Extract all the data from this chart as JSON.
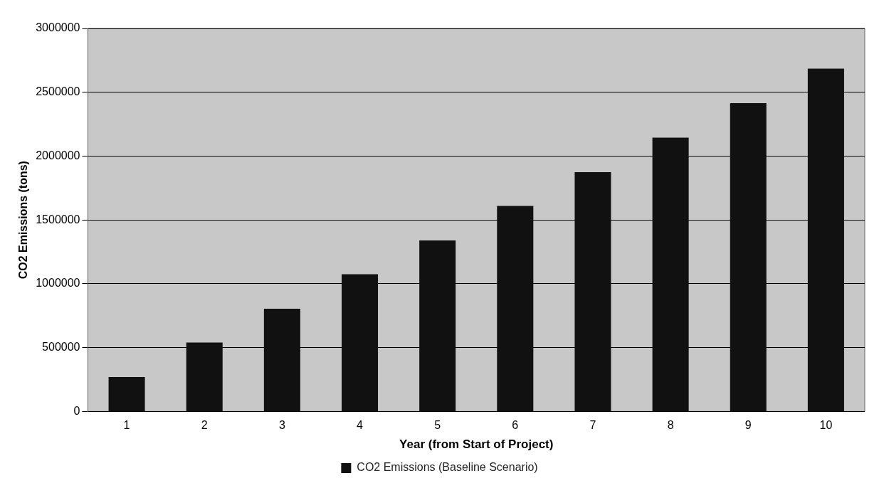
{
  "chart_data": {
    "type": "bar",
    "xlabel": "Year (from Start of Project)",
    "ylabel": "CO2 Emissions (tons)",
    "categories": [
      "1",
      "2",
      "3",
      "4",
      "5",
      "6",
      "7",
      "8",
      "9",
      "10"
    ],
    "series": [
      {
        "name": "CO2 Emissions (Baseline Scenario)",
        "color": "#111111",
        "values": [
          270000,
          540000,
          805000,
          1075000,
          1340000,
          1610000,
          1875000,
          2145000,
          2415000,
          2685000
        ]
      }
    ],
    "ylim": [
      0,
      3000000
    ],
    "yticks": [
      0,
      500000,
      1000000,
      1500000,
      2000000,
      2500000,
      3000000
    ],
    "grid": "y",
    "legend": "bottom"
  }
}
